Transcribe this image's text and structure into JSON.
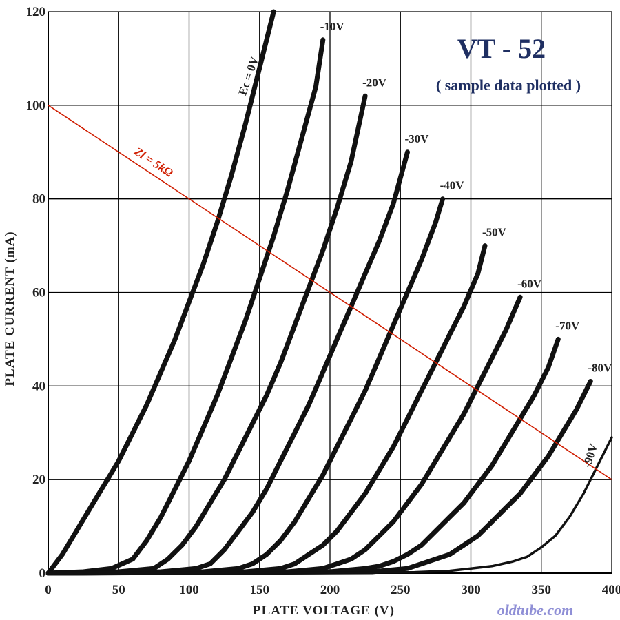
{
  "chart_data": {
    "type": "line",
    "title": "VT - 52",
    "subtitle": "( sample data plotted )",
    "xlabel": "PLATE  VOLTAGE  (V)",
    "ylabel": "PLATE  CURRENT  (mA)",
    "xlim": [
      0,
      400
    ],
    "ylim": [
      0,
      120
    ],
    "xticks": [
      "0",
      "50",
      "100",
      "150",
      "200",
      "250",
      "300",
      "350",
      "400"
    ],
    "yticks": [
      "0",
      "20",
      "40",
      "60",
      "80",
      "100",
      "120"
    ],
    "grid": true,
    "watermark": "oldtube.com",
    "series": [
      {
        "name": "Ec = 0V",
        "x": [
          0,
          10,
          20,
          30,
          40,
          50,
          60,
          70,
          80,
          90,
          100,
          110,
          120,
          130,
          140,
          150,
          160
        ],
        "y": [
          0,
          4,
          9,
          14,
          19,
          24,
          30,
          36,
          43,
          50,
          58,
          66,
          75,
          85,
          96,
          108,
          120
        ]
      },
      {
        "name": "-10V",
        "x": [
          0,
          25,
          45,
          60,
          70,
          80,
          90,
          100,
          110,
          120,
          130,
          140,
          150,
          160,
          170,
          180,
          190,
          195
        ],
        "y": [
          0,
          0.3,
          1,
          3,
          7,
          12,
          18,
          24,
          31,
          38,
          46,
          54,
          63,
          72,
          82,
          93,
          104,
          114
        ]
      },
      {
        "name": "-20V",
        "x": [
          0,
          50,
          75,
          85,
          95,
          105,
          115,
          125,
          135,
          145,
          155,
          165,
          175,
          185,
          195,
          205,
          215,
          225
        ],
        "y": [
          0,
          0.3,
          1,
          3,
          6,
          10,
          15,
          20,
          26,
          32,
          38,
          45,
          53,
          61,
          69,
          78,
          88,
          102
        ]
      },
      {
        "name": "-30V",
        "x": [
          0,
          80,
          105,
          115,
          125,
          135,
          145,
          155,
          165,
          175,
          185,
          195,
          205,
          215,
          225,
          235,
          245,
          255
        ],
        "y": [
          0,
          0.3,
          1,
          2,
          5,
          9,
          13,
          18,
          24,
          30,
          36,
          43,
          50,
          57,
          64,
          71,
          79,
          90
        ]
      },
      {
        "name": "-40V",
        "x": [
          0,
          110,
          135,
          145,
          155,
          165,
          175,
          185,
          195,
          205,
          215,
          225,
          235,
          245,
          255,
          265,
          275,
          280
        ],
        "y": [
          0,
          0.3,
          1,
          2,
          4,
          7,
          11,
          16,
          21,
          27,
          33,
          39,
          46,
          53,
          60,
          67,
          75,
          80
        ]
      },
      {
        "name": "-50V",
        "x": [
          0,
          140,
          165,
          175,
          185,
          195,
          205,
          215,
          225,
          235,
          245,
          255,
          265,
          275,
          285,
          295,
          305,
          310
        ],
        "y": [
          0,
          0.3,
          1,
          2,
          4,
          6,
          9,
          13,
          17,
          22,
          27,
          33,
          39,
          45,
          51,
          57,
          64,
          70
        ]
      },
      {
        "name": "-60V",
        "x": [
          0,
          170,
          195,
          205,
          215,
          225,
          235,
          245,
          255,
          265,
          275,
          285,
          295,
          305,
          315,
          325,
          335
        ],
        "y": [
          0,
          0.3,
          1,
          2,
          3,
          5,
          8,
          11,
          15,
          19,
          24,
          29,
          34,
          40,
          46,
          52,
          59
        ]
      },
      {
        "name": "-70V",
        "x": [
          0,
          200,
          225,
          235,
          245,
          255,
          265,
          275,
          285,
          295,
          305,
          315,
          325,
          335,
          345,
          355,
          362
        ],
        "y": [
          0,
          0.3,
          1,
          1.5,
          2.5,
          4,
          6,
          9,
          12,
          15,
          19,
          23,
          28,
          33,
          38,
          44,
          50
        ]
      },
      {
        "name": "-80V",
        "x": [
          0,
          230,
          255,
          265,
          275,
          285,
          295,
          305,
          315,
          325,
          335,
          345,
          355,
          365,
          375,
          385
        ],
        "y": [
          0,
          0.3,
          1,
          2,
          3,
          4,
          6,
          8,
          11,
          14,
          17,
          21,
          25,
          30,
          35,
          41
        ]
      },
      {
        "name": "-90V",
        "x": [
          0,
          260,
          285,
          300,
          315,
          330,
          340,
          350,
          360,
          370,
          380,
          390,
          400
        ],
        "y": [
          0,
          0.2,
          0.5,
          1,
          1.5,
          2.5,
          3.5,
          5.5,
          8,
          12,
          17,
          23,
          29
        ]
      }
    ],
    "load_line": {
      "name": "Zl = 5kΩ",
      "x": [
        0,
        400
      ],
      "y": [
        100,
        20
      ],
      "color": "#d01d00"
    },
    "colors": {
      "curve": "#111111",
      "grid": "#000000",
      "title": "#1f2f62",
      "watermark": "#8f8fd6"
    }
  }
}
